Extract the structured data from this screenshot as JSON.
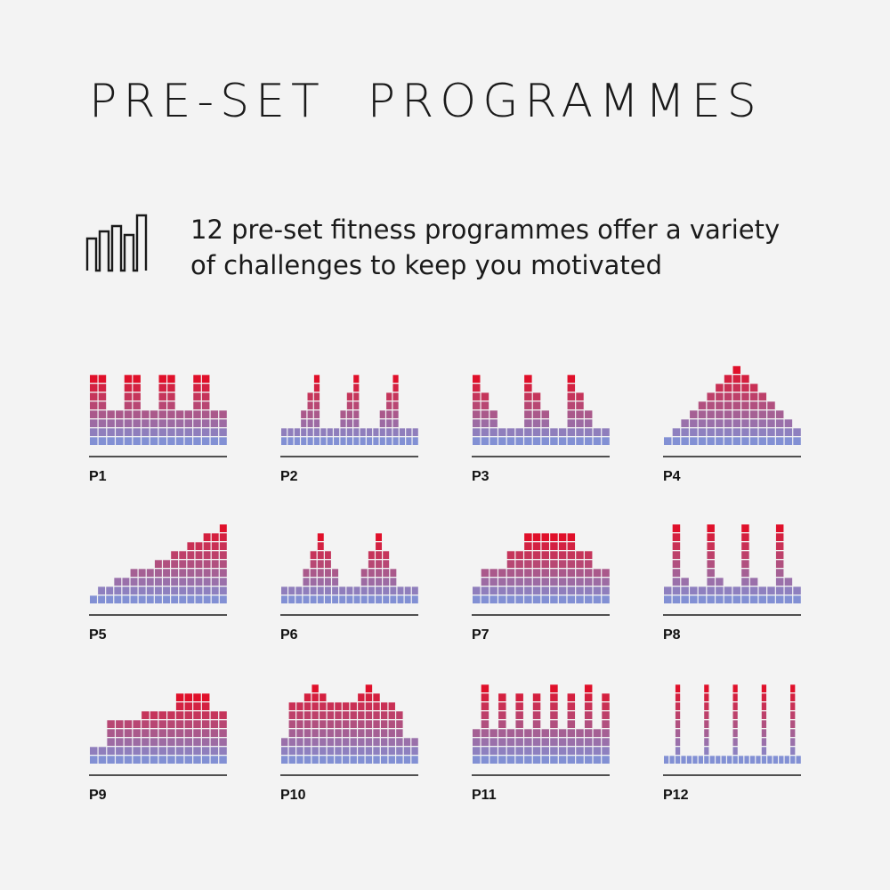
{
  "title": "PRE-SET  PROGRAMMES",
  "intro": {
    "line1": "12 pre-set fitness programmes offer a variety",
    "line2": "of challenges to keep you motivated"
  },
  "header_icon": "bar-chart-icon",
  "colors": {
    "background": "#f3f3f3",
    "low": "#8290d4",
    "high": "#e0102a",
    "line": "#1a1a1a"
  },
  "chart_data": [
    {
      "type": "bar",
      "title": "P1",
      "max_level": 8,
      "values": [
        8,
        8,
        4,
        4,
        8,
        8,
        4,
        4,
        8,
        8,
        4,
        4,
        8,
        8,
        4,
        4
      ]
    },
    {
      "type": "bar",
      "title": "P2",
      "max_level": 8,
      "values": [
        2,
        2,
        2,
        4,
        6,
        8,
        2,
        2,
        2,
        4,
        6,
        8,
        2,
        2,
        2,
        4,
        6,
        8,
        2,
        2,
        2
      ]
    },
    {
      "type": "bar",
      "title": "P3",
      "max_level": 8,
      "values": [
        8,
        6,
        4,
        2,
        2,
        2,
        8,
        6,
        4,
        2,
        2,
        8,
        6,
        4,
        2,
        2
      ]
    },
    {
      "type": "bar",
      "title": "P4",
      "max_level": 9,
      "values": [
        1,
        2,
        3,
        4,
        5,
        6,
        7,
        8,
        9,
        8,
        7,
        6,
        5,
        4,
        3,
        2
      ]
    },
    {
      "type": "bar",
      "title": "P5",
      "max_level": 9,
      "values": [
        1,
        2,
        2,
        3,
        3,
        4,
        4,
        4,
        5,
        5,
        6,
        6,
        7,
        7,
        8,
        8,
        9
      ]
    },
    {
      "type": "bar",
      "title": "P6",
      "max_level": 8,
      "values": [
        2,
        2,
        2,
        4,
        6,
        8,
        6,
        4,
        2,
        2,
        2,
        4,
        6,
        8,
        6,
        4,
        2,
        2,
        2
      ]
    },
    {
      "type": "bar",
      "title": "P7",
      "max_level": 8,
      "values": [
        2,
        4,
        4,
        4,
        6,
        6,
        8,
        8,
        8,
        8,
        8,
        8,
        6,
        6,
        4,
        4
      ]
    },
    {
      "type": "bar",
      "title": "P8",
      "max_level": 9,
      "values": [
        2,
        9,
        3,
        2,
        2,
        9,
        3,
        2,
        2,
        9,
        3,
        2,
        2,
        9,
        3,
        2
      ]
    },
    {
      "type": "bar",
      "title": "P9",
      "max_level": 8,
      "values": [
        2,
        2,
        5,
        5,
        5,
        5,
        6,
        6,
        6,
        6,
        8,
        8,
        8,
        8,
        6,
        6
      ]
    },
    {
      "type": "bar",
      "title": "P10",
      "max_level": 9,
      "values": [
        3,
        7,
        7,
        8,
        9,
        8,
        7,
        7,
        7,
        7,
        8,
        9,
        8,
        7,
        7,
        6,
        3,
        3
      ]
    },
    {
      "type": "bar",
      "title": "P11",
      "max_level": 9,
      "values": [
        4,
        9,
        4,
        8,
        4,
        8,
        4,
        8,
        4,
        9,
        4,
        8,
        4,
        9,
        4,
        8
      ]
    },
    {
      "type": "bar",
      "title": "P12",
      "max_level": 9,
      "values": [
        1,
        1,
        9,
        1,
        1,
        1,
        1,
        9,
        1,
        1,
        1,
        1,
        9,
        1,
        1,
        1,
        1,
        9,
        1,
        1,
        1,
        1,
        9,
        1
      ]
    }
  ]
}
